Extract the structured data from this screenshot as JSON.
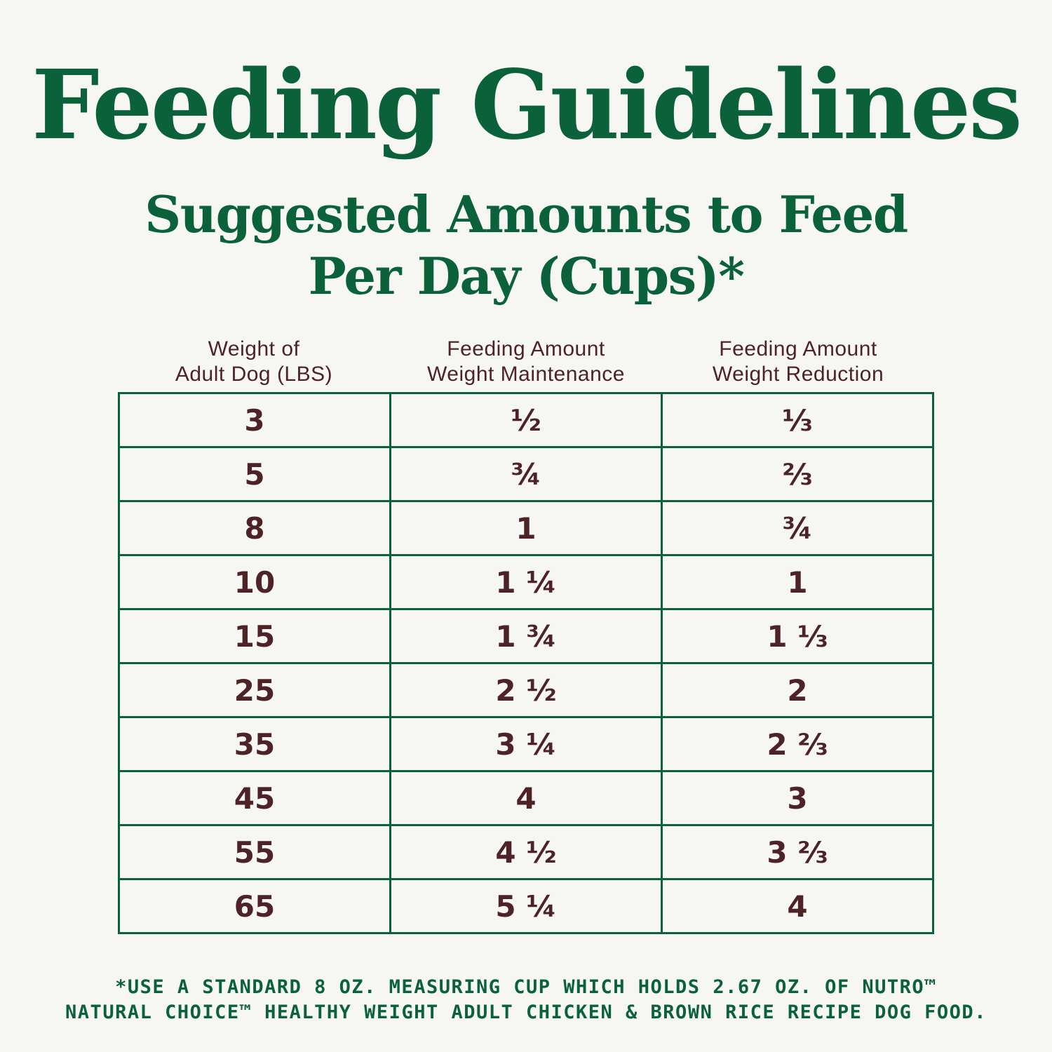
{
  "title": "Feeding Guidelines",
  "subtitle": {
    "line1": "Suggested Amounts to Feed",
    "line2": "Per Day (Cups)*"
  },
  "table": {
    "headers": [
      {
        "line1": "Weight of",
        "line2": "Adult Dog (LBS)"
      },
      {
        "line1": "Feeding Amount",
        "line2": "Weight Maintenance"
      },
      {
        "line1": "Feeding Amount",
        "line2": "Weight Reduction"
      }
    ],
    "rows": [
      {
        "weight": "3",
        "maintenance": "½",
        "reduction": "⅓"
      },
      {
        "weight": "5",
        "maintenance": "¾",
        "reduction": "⅔"
      },
      {
        "weight": "8",
        "maintenance": "1",
        "reduction": "¾"
      },
      {
        "weight": "10",
        "maintenance": "1 ¼",
        "reduction": "1"
      },
      {
        "weight": "15",
        "maintenance": "1 ¾",
        "reduction": "1 ⅓"
      },
      {
        "weight": "25",
        "maintenance": "2 ½",
        "reduction": "2"
      },
      {
        "weight": "35",
        "maintenance": "3 ¼",
        "reduction": "2 ⅔"
      },
      {
        "weight": "45",
        "maintenance": "4",
        "reduction": "3"
      },
      {
        "weight": "55",
        "maintenance": "4 ½",
        "reduction": "3 ⅔"
      },
      {
        "weight": "65",
        "maintenance": "5 ¼",
        "reduction": "4"
      }
    ]
  },
  "footnote": {
    "line1": "*USE A STANDARD 8 OZ. MEASURING CUP WHICH HOLDS 2.67 OZ. OF NUTRO™",
    "line2": "NATURAL CHOICE™ HEALTHY WEIGHT ADULT CHICKEN & BROWN RICE RECIPE DOG FOOD."
  },
  "colors": {
    "background": "#f6f7f2",
    "brand_green": "#0b6139",
    "text_maroon": "#4e2328"
  }
}
